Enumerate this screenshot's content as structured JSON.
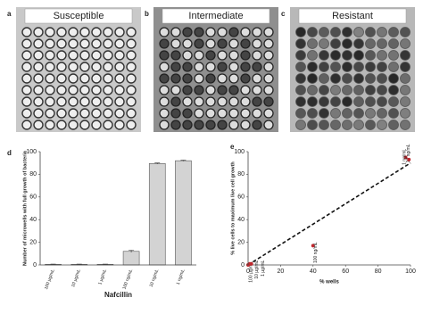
{
  "panels": [
    {
      "letter": "a",
      "title": "Susceptible"
    },
    {
      "letter": "b",
      "title": "Intermediate"
    },
    {
      "letter": "c",
      "title": "Resistant"
    }
  ],
  "chart_data": [
    {
      "type": "bar",
      "label": "d",
      "y_label": "Number of microwells with full growth of bacteria",
      "x_label": "Nafcillin",
      "categories": [
        "100 µg/mL",
        "10 µg/mL",
        "1 µg/mL",
        "100 ng/mL",
        "10 ng/mL",
        "1 ng/mL"
      ],
      "values": [
        0.5,
        0.5,
        0.5,
        12,
        89.5,
        92
      ],
      "errors": [
        0.2,
        0.2,
        0.2,
        1,
        0.5,
        0.5
      ],
      "color": "#d3d3d3",
      "ylim": [
        0,
        100
      ],
      "yticks": [
        0,
        20,
        40,
        60,
        80,
        100
      ]
    },
    {
      "type": "scatter",
      "label": "e",
      "y_label": "% live cells to maximum live cell growth",
      "x_label": "% wells",
      "x": [
        0,
        1,
        2,
        40,
        97,
        99
      ],
      "values": [
        0,
        1,
        1,
        17,
        95,
        93
      ],
      "point_labels": [
        "100 µg/mL",
        "10 µg/mL",
        "1 µg/mL",
        "100 ng/mL",
        "10 ng/mL",
        "1 ng/mL"
      ],
      "color": "#c0272d",
      "fit": {
        "x": [
          0,
          100
        ],
        "y": [
          0,
          90
        ]
      },
      "xlim": [
        0,
        100
      ],
      "xticks": [
        0,
        20,
        40,
        60,
        80,
        100
      ],
      "ylim": [
        0,
        100
      ],
      "yticks": [
        0,
        20,
        40,
        60,
        80,
        100
      ]
    }
  ]
}
